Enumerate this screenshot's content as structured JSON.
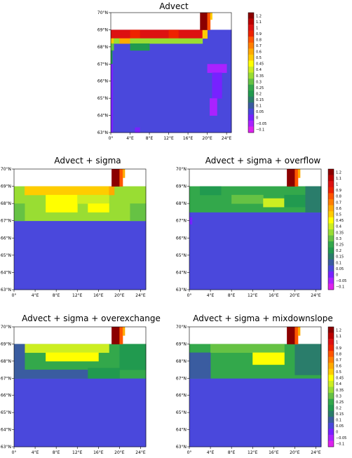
{
  "chart_data": [
    {
      "type": "heatmap",
      "title": "Advect",
      "x_tick_labels": [
        "0°",
        "4°E",
        "8°E",
        "12°E",
        "16°E",
        "20°E",
        "24°E"
      ],
      "y_tick_labels": [
        "63°N",
        "64°N",
        "65°N",
        "66°N",
        "67°N",
        "68°N",
        "69°N",
        "70°N"
      ],
      "x_range": [
        0,
        25
      ],
      "y_range": [
        63,
        70
      ],
      "land_mask": "white (north of ~69°N, except at ~18–21°E)",
      "field_description": "mostly ~0.05 over the region; red 1.0 band along 68.5–69°N between 0° and 20°E; values 1.1–1.2 at 18–20°E north of 69°N; thin 0.35–0.6 strip along ~68°N; isolated 0.2 cells near 67.8°N at 4–8°E; small negative patches (~-0.05) along 20–23°E south of 67°N",
      "has_colorbar": true
    },
    {
      "type": "heatmap",
      "title": "Advect  +  sigma",
      "x_tick_labels": [
        "0°",
        "4°E",
        "8°E",
        "12°E",
        "16°E",
        "20°E",
        "24°E"
      ],
      "y_tick_labels": [
        "63°N",
        "64°N",
        "65°N",
        "66°N",
        "67°N",
        "68°N",
        "69°N",
        "70°N"
      ],
      "x_range": [
        0,
        25
      ],
      "y_range": [
        63,
        70
      ],
      "land_mask": "white (north of ~69°N, except at ~18–21°E)",
      "field_description": "uniform ~0.05 south of 67°N; a broad band 67–69°N of 0.35–0.5, highest (0.5) along 68.5–69°N and in the middle of the band; 1.1–1.2 at 18–20°E north of 69°N",
      "has_colorbar": false
    },
    {
      "type": "heatmap",
      "title": "Advect  +  sigma  +  overflow",
      "x_tick_labels": [
        "0°",
        "4°E",
        "8°E",
        "12°E",
        "16°E",
        "20°E",
        "24°E"
      ],
      "y_tick_labels": [
        "63°N",
        "64°N",
        "65°N",
        "66°N",
        "67°N",
        "68°N",
        "69°N",
        "70°N"
      ],
      "x_range": [
        0,
        25
      ],
      "y_range": [
        63,
        70
      ],
      "land_mask": "white (north of ~69°N, except at ~18–21°E)",
      "field_description": "uniform ~0.05 south of 67.5°N; band 67.5–69°N of 0.2–0.35 with small 0.4 patches; 1.1–1.2 at 18–20°E north of 69°N; a small -0.05 spot at ~0°, 67°N",
      "has_colorbar": true
    },
    {
      "type": "heatmap",
      "title": "Advect  +  sigma  +  overexchange",
      "x_tick_labels": [
        "0°",
        "4°E",
        "8°E",
        "12°E",
        "16°E",
        "20°E",
        "24°E"
      ],
      "y_tick_labels": [
        "63°N",
        "64°N",
        "65°N",
        "66°N",
        "67°N",
        "68°N",
        "69°N",
        "70°N"
      ],
      "x_range": [
        0,
        25
      ],
      "y_range": [
        63,
        70
      ],
      "land_mask": "white (north of ~69°N, except at ~18–21°E)",
      "field_description": "uniform ~0.05 south of about 67°N; band 67–69°N of 0.2–0.45, with 0.4–0.45 across 2–18°E and a 0.1 edge on the west and south; 1.1–1.2 at 18–20°E north of 69°N",
      "has_colorbar": false
    },
    {
      "type": "heatmap",
      "title": "Advect  +  sigma  +  mixdownslope",
      "x_tick_labels": [
        "0°",
        "4°E",
        "8°E",
        "12°E",
        "16°E",
        "20°E",
        "24°E"
      ],
      "y_tick_labels": [
        "63°N",
        "64°N",
        "65°N",
        "66°N",
        "67°N",
        "68°N",
        "69°N",
        "70°N"
      ],
      "x_range": [
        0,
        25
      ],
      "y_range": [
        63,
        70
      ],
      "land_mask": "white (north of ~69°N, except at ~18–21°E)",
      "field_description": "uniform ~0.05 south of 67°N; band 67–69°N of 0.2–0.4 with a 0.45 patch around 12–18°E, 68°N; 1.1–1.2 at 18–20°E north of 69°N",
      "has_colorbar": true
    }
  ],
  "colorbar": {
    "labels": [
      "1.2",
      "1.1",
      "1",
      "0.9",
      "0.8",
      "0.7",
      "0.6",
      "0.5",
      "0.45",
      "0.4",
      "0.35",
      "0.3",
      "0.25",
      "0.2",
      "0.15",
      "0.1",
      "0.05",
      "0",
      "−0.05",
      "−0.1"
    ],
    "colors": [
      "#8b0000",
      "#bb0000",
      "#dd1111",
      "#ee2200",
      "#ff5500",
      "#ff7f00",
      "#ffaa00",
      "#ffcc00",
      "#ffff00",
      "#ccee22",
      "#99dd33",
      "#66c244",
      "#33a84b",
      "#219a4f",
      "#2a7d6b",
      "#3a5ca0",
      "#4a48dc",
      "#7722ff",
      "#aa22ff",
      "#dd22ee"
    ]
  }
}
